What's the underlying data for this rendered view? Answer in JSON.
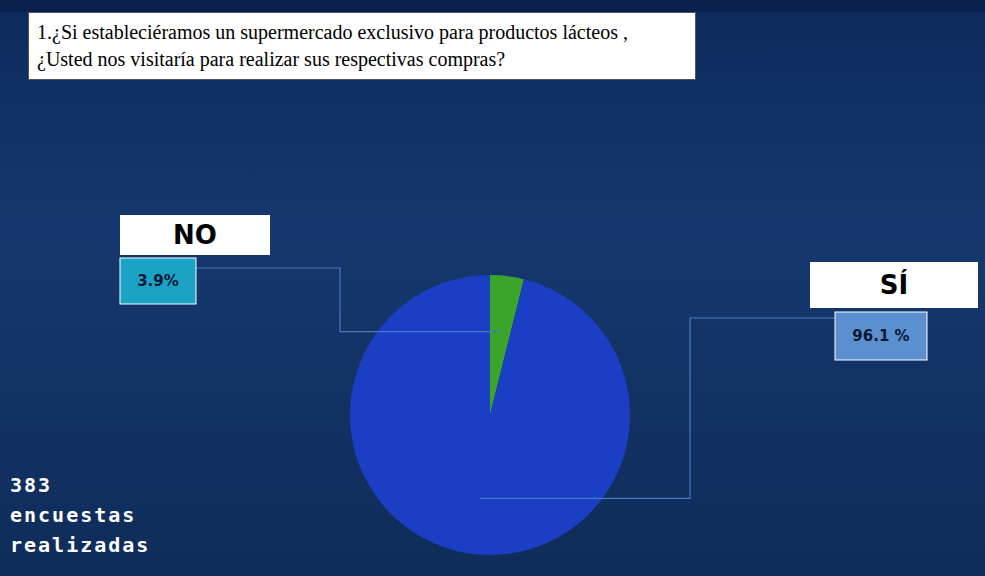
{
  "chart_data": {
    "type": "pie",
    "title": "1.¿Si estableciéramos un supermercado exclusivo para productos lácteos , ¿Usted nos visitaría para realizar sus respectivas compras?",
    "categories": [
      "NO",
      "SÍ"
    ],
    "values": [
      3.9,
      96.1
    ],
    "value_labels": [
      "3.9%",
      "96.1 %"
    ],
    "colors": [
      "#3aa52a",
      "#1a3fc4"
    ],
    "data_labels": true,
    "annotations": [
      "383 encuestas realizadas"
    ]
  }
}
